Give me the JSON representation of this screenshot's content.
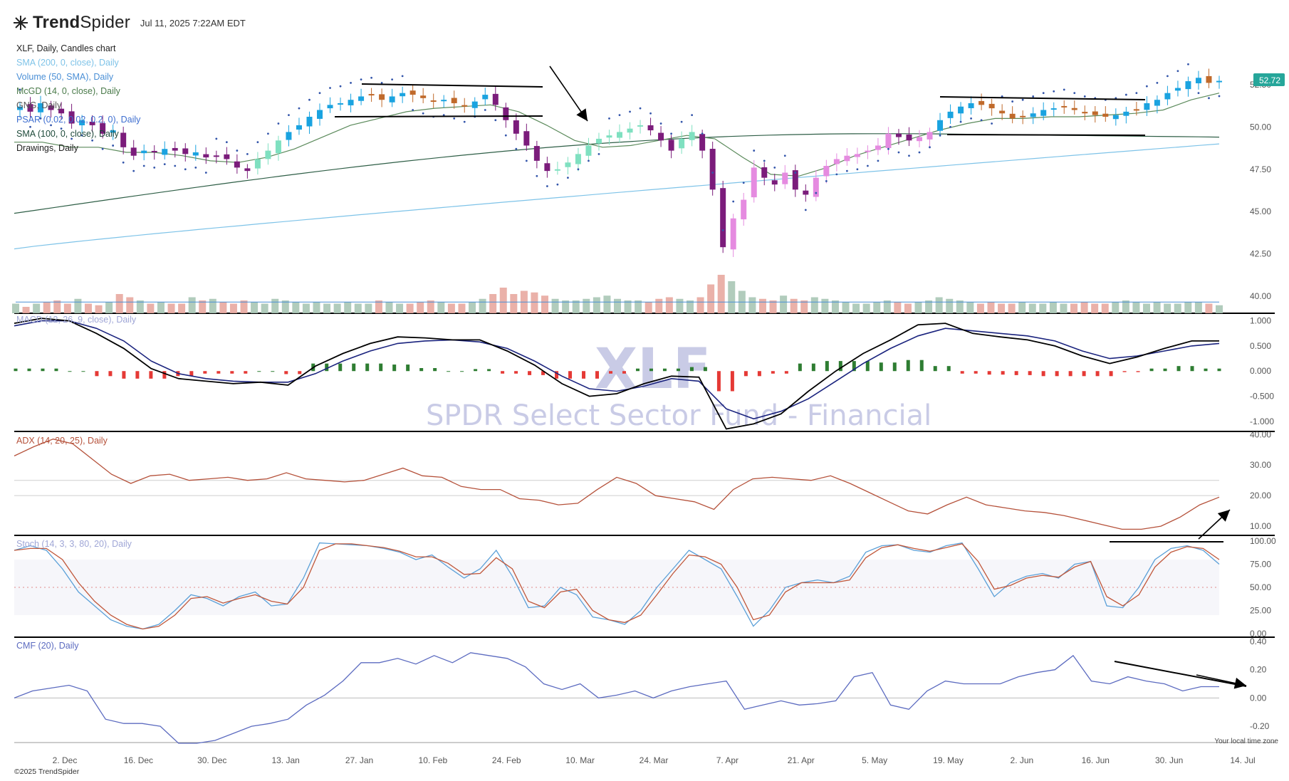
{
  "app": {
    "brand_bold": "Trend",
    "brand_light": "Spider",
    "timestamp": "Jul 11, 2025 7:22AM EDT",
    "copyright": "©2025 TrendSpider",
    "timezone_note": "Your local time zone"
  },
  "legend": [
    {
      "text": "XLF, Daily, Candles chart",
      "color": "#222222"
    },
    {
      "text": "SMA (200, 0, close), Daily",
      "color": "#7ec3e8"
    },
    {
      "text": "Volume (50, SMA), Daily",
      "color": "#4a8fd6"
    },
    {
      "text": "McGD (14, 0, close), Daily",
      "color": "#4a7a4a"
    },
    {
      "text": "GNG, Daily",
      "color": "#555555"
    },
    {
      "text": "PSAR (0.02, 0.02, 0.2, 0), Daily",
      "color": "#3f6fd0"
    },
    {
      "text": "SMA (100, 0, close), Daily",
      "color": "#1e4a3a"
    },
    {
      "text": "Drawings, Daily",
      "color": "#222222"
    }
  ],
  "watermark": {
    "symbol": "XLF",
    "name": "SPDR Select Sector Fund - Financial"
  },
  "colors": {
    "sma200": "#7ec3e8",
    "sma100": "#2e5e46",
    "mcgd": "#5b8a5b",
    "psar": "#3355aa",
    "macd_line": "#000000",
    "macd_signal": "#1a237e",
    "hist_pos": "#2e7d32",
    "hist_neg": "#e53935",
    "adx": "#b5513a",
    "stoch_k": "#5ba0d8",
    "stoch_d": "#c0573a",
    "cmf": "#5c6bc0",
    "price_tag": "#26a69a"
  },
  "price_tag": "52.72",
  "chart_data": [
    {
      "panel": "price",
      "type": "candlestick",
      "ylim": [
        39,
        53.5
      ],
      "yticks": [
        "52.50",
        "50.00",
        "47.50",
        "45.00",
        "42.50",
        "40.00"
      ],
      "ytick_values": [
        52.5,
        50,
        47.5,
        45,
        42.5,
        40
      ],
      "xticks": [
        "2. Dec",
        "16. Dec",
        "30. Dec",
        "13. Jan",
        "27. Jan",
        "10. Feb",
        "24. Feb",
        "10. Mar",
        "24. Mar",
        "7. Apr",
        "21. Apr",
        "5. May",
        "19. May",
        "2. Jun",
        "16. Jun",
        "30. Jun",
        "14. Jul"
      ],
      "close_path": [
        51.2,
        50.9,
        51.4,
        51.0,
        50.8,
        50.2,
        50.4,
        50.1,
        49.6,
        49.8,
        48.8,
        48.3,
        48.6,
        48.5,
        48.7,
        48.6,
        48.4,
        48.5,
        48.2,
        48.3,
        48.1,
        47.6,
        47.4,
        48.1,
        48.6,
        49.2,
        49.7,
        50.1,
        50.6,
        51.0,
        51.3,
        51.4,
        51.6,
        51.8,
        51.9,
        51.6,
        51.8,
        52.0,
        51.9,
        51.7,
        51.5,
        51.6,
        51.4,
        51.2,
        51.5,
        51.9,
        51.3,
        50.4,
        49.6,
        48.9,
        48.0,
        47.4,
        47.5,
        47.9,
        48.4,
        48.9,
        49.3,
        49.5,
        49.7,
        49.9,
        50.1,
        49.8,
        49.2,
        48.6,
        49.3,
        49.7,
        48.6,
        46.3,
        42.9,
        44.6,
        45.7,
        47.6,
        47.0,
        46.6,
        47.3,
        46.3,
        46.0,
        47.0,
        47.7,
        48.1,
        48.3,
        48.4,
        48.6,
        48.9,
        49.6,
        49.4,
        49.2,
        49.4,
        49.7,
        50.4,
        50.9,
        51.2,
        51.4,
        51.3,
        51.1,
        50.8,
        50.5,
        50.6,
        50.8,
        51.0,
        51.1,
        51.2,
        51.0,
        50.8,
        50.7,
        50.6,
        50.7,
        50.9,
        51.0,
        51.4,
        51.6,
        52.0,
        52.3,
        52.7,
        52.9,
        52.6,
        52.72
      ],
      "volume_relative": [
        0.3,
        0.2,
        0.3,
        0.35,
        0.4,
        0.3,
        0.45,
        0.3,
        0.25,
        0.35,
        0.6,
        0.5,
        0.4,
        0.3,
        0.35,
        0.3,
        0.3,
        0.5,
        0.4,
        0.45,
        0.35,
        0.3,
        0.4,
        0.35,
        0.3,
        0.45,
        0.4,
        0.35,
        0.3,
        0.35,
        0.3,
        0.3,
        0.35,
        0.3,
        0.3,
        0.4,
        0.35,
        0.3,
        0.3,
        0.35,
        0.4,
        0.35,
        0.3,
        0.3,
        0.35,
        0.45,
        0.6,
        0.8,
        0.6,
        0.7,
        0.65,
        0.55,
        0.45,
        0.4,
        0.4,
        0.45,
        0.5,
        0.55,
        0.45,
        0.4,
        0.4,
        0.35,
        0.45,
        0.5,
        0.45,
        0.4,
        0.5,
        0.9,
        1.2,
        1.0,
        0.7,
        0.5,
        0.45,
        0.4,
        0.55,
        0.45,
        0.4,
        0.5,
        0.45,
        0.4,
        0.35,
        0.3,
        0.3,
        0.35,
        0.4,
        0.35,
        0.3,
        0.35,
        0.4,
        0.5,
        0.45,
        0.4,
        0.35,
        0.3,
        0.35,
        0.3,
        0.3,
        0.35,
        0.3,
        0.3,
        0.35,
        0.3,
        0.3,
        0.35,
        0.3,
        0.3,
        0.35,
        0.4,
        0.35,
        0.3,
        0.35,
        0.3,
        0.3,
        0.35,
        0.35,
        0.3,
        0.25
      ],
      "sma200_range": [
        42.8,
        49.0
      ],
      "sma100_range": [
        44.9,
        49.6
      ],
      "mcgd_path": [
        49.1,
        49.1,
        48.8,
        48.8,
        48.5,
        48.5,
        48.3,
        48.0,
        47.9,
        48.2,
        48.7,
        49.4,
        50.1,
        50.5,
        50.9,
        51.1,
        51.2,
        51.3,
        50.9,
        50.1,
        49.2,
        48.8,
        48.9,
        49.2,
        49.5,
        49.3,
        48.2,
        47.2,
        47.1,
        47.6,
        48.3,
        48.8,
        49.3,
        49.8,
        50.2,
        50.5,
        50.5,
        50.6,
        50.6,
        50.7,
        50.8,
        51.0,
        51.6,
        52.0
      ]
    },
    {
      "panel": "macd",
      "type": "line+bar",
      "label": "MACD (12, 26, 9, close), Daily",
      "ylim": [
        -1.2,
        1.15
      ],
      "yticks": [
        "1.000",
        "0.500",
        "0.000",
        "-0.500",
        "-1.000"
      ],
      "ytick_values": [
        1.0,
        0.5,
        0.0,
        -0.5,
        -1.0
      ],
      "macd": [
        0.95,
        1.05,
        1.0,
        0.75,
        0.45,
        0.05,
        -0.15,
        -0.2,
        -0.25,
        -0.22,
        -0.28,
        0.1,
        0.35,
        0.55,
        0.68,
        0.66,
        0.62,
        0.62,
        0.4,
        0.12,
        -0.25,
        -0.5,
        -0.45,
        -0.25,
        -0.1,
        -0.12,
        -1.15,
        -1.05,
        -0.85,
        -0.4,
        0.0,
        0.35,
        0.62,
        0.92,
        0.95,
        0.75,
        0.68,
        0.62,
        0.5,
        0.3,
        0.15,
        0.28,
        0.45,
        0.6,
        0.6
      ],
      "signal": [
        0.9,
        1.0,
        1.0,
        0.85,
        0.6,
        0.2,
        -0.05,
        -0.15,
        -0.2,
        -0.22,
        -0.22,
        -0.05,
        0.2,
        0.4,
        0.55,
        0.6,
        0.62,
        0.58,
        0.45,
        0.2,
        -0.1,
        -0.35,
        -0.4,
        -0.3,
        -0.15,
        -0.2,
        -0.75,
        -0.95,
        -0.8,
        -0.55,
        -0.2,
        0.15,
        0.45,
        0.7,
        0.85,
        0.8,
        0.75,
        0.7,
        0.6,
        0.4,
        0.25,
        0.3,
        0.4,
        0.5,
        0.55
      ],
      "histogram": [
        0.05,
        0.05,
        0.0,
        -0.1,
        -0.15,
        -0.15,
        -0.1,
        -0.05,
        -0.05,
        0.0,
        -0.06,
        0.15,
        0.15,
        0.15,
        0.13,
        0.06,
        0.0,
        0.04,
        -0.05,
        -0.08,
        -0.15,
        -0.15,
        -0.05,
        0.05,
        0.05,
        0.08,
        -0.4,
        -0.1,
        -0.05,
        0.15,
        0.2,
        0.2,
        0.17,
        0.22,
        0.1,
        -0.05,
        -0.07,
        -0.08,
        -0.1,
        -0.1,
        -0.1,
        -0.02,
        0.05,
        0.1,
        0.05
      ]
    },
    {
      "panel": "adx",
      "type": "line",
      "label": "ADX (14, 20, 25), Daily",
      "ylim": [
        7,
        41
      ],
      "yticks": [
        "40.00",
        "30.00",
        "20.00",
        "10.00"
      ],
      "ytick_values": [
        40,
        30,
        20,
        10
      ],
      "reference_lines": [
        20,
        25
      ],
      "values": [
        33,
        36,
        38.5,
        37,
        32,
        27,
        24,
        26.5,
        27,
        25,
        25.5,
        26,
        25,
        25.5,
        27.5,
        25.5,
        25,
        24.5,
        25,
        27,
        29,
        26.5,
        26,
        23,
        22,
        22,
        19,
        18.5,
        17,
        17.5,
        22,
        26,
        24,
        20,
        19,
        18,
        15.5,
        22,
        25.5,
        26,
        25.5,
        25,
        26.5,
        24,
        21,
        18,
        15,
        14,
        17,
        19.5,
        17,
        16,
        15,
        14.5,
        13.5,
        12,
        10.5,
        9,
        9,
        10,
        13,
        17,
        19.5
      ]
    },
    {
      "panel": "stoch",
      "type": "line",
      "label": "Stoch (14, 3, 3, 80, 20), Daily",
      "ylim": [
        0,
        100
      ],
      "yticks": [
        "100.00",
        "75.00",
        "50.00",
        "25.00",
        "0.00"
      ],
      "ytick_values": [
        100,
        75,
        50,
        25,
        0
      ],
      "reference_lines": [
        80,
        50,
        20
      ],
      "k": [
        90,
        95,
        90,
        70,
        45,
        30,
        15,
        8,
        5,
        10,
        25,
        42,
        38,
        30,
        40,
        45,
        30,
        32,
        60,
        98,
        97,
        96,
        95,
        92,
        88,
        80,
        85,
        72,
        60,
        70,
        90,
        62,
        28,
        30,
        50,
        42,
        18,
        15,
        10,
        25,
        50,
        70,
        90,
        80,
        70,
        40,
        8,
        25,
        50,
        55,
        58,
        55,
        62,
        88,
        95,
        96,
        90,
        88,
        95,
        98,
        70,
        40,
        55,
        62,
        65,
        60,
        75,
        78,
        30,
        28,
        50,
        80,
        92,
        95,
        90,
        75
      ],
      "d": [
        90,
        92,
        92,
        80,
        55,
        35,
        20,
        10,
        5,
        8,
        20,
        38,
        40,
        33,
        38,
        42,
        35,
        32,
        50,
        90,
        97,
        97,
        95,
        93,
        89,
        83,
        83,
        76,
        64,
        65,
        82,
        70,
        35,
        28,
        45,
        48,
        25,
        15,
        12,
        20,
        42,
        65,
        85,
        83,
        75,
        50,
        15,
        20,
        45,
        55,
        55,
        55,
        58,
        82,
        93,
        96,
        92,
        89,
        93,
        97,
        78,
        48,
        52,
        60,
        63,
        61,
        72,
        78,
        40,
        30,
        42,
        72,
        88,
        94,
        92,
        80
      ]
    },
    {
      "panel": "cmf",
      "type": "line",
      "label": "CMF (20), Daily",
      "ylim": [
        -0.3,
        0.43
      ],
      "yticks": [
        "0.40",
        "0.20",
        "0.00",
        "-0.20"
      ],
      "ytick_values": [
        0.4,
        0.2,
        0.0,
        -0.2
      ],
      "values": [
        0.0,
        0.05,
        0.07,
        0.09,
        0.05,
        -0.15,
        -0.18,
        -0.18,
        -0.2,
        -0.32,
        -0.32,
        -0.3,
        -0.25,
        -0.2,
        -0.18,
        -0.15,
        -0.05,
        0.02,
        0.12,
        0.25,
        0.25,
        0.28,
        0.24,
        0.3,
        0.25,
        0.32,
        0.3,
        0.28,
        0.22,
        0.1,
        0.06,
        0.1,
        0.0,
        0.02,
        0.05,
        0.0,
        0.05,
        0.08,
        0.1,
        0.12,
        -0.08,
        -0.05,
        -0.02,
        -0.05,
        -0.04,
        -0.02,
        0.15,
        0.18,
        -0.05,
        -0.08,
        0.05,
        0.12,
        0.1,
        0.1,
        0.1,
        0.15,
        0.18,
        0.2,
        0.3,
        0.12,
        0.1,
        0.15,
        0.12,
        0.1,
        0.05,
        0.08,
        0.08
      ]
    }
  ],
  "panel_labels": {
    "macd": "MACD (12, 26, 9, close), Daily",
    "adx": "ADX (14, 20, 25), Daily",
    "stoch": "Stoch (14, 3, 3, 80, 20), Daily",
    "cmf": "CMF (20), Daily"
  }
}
